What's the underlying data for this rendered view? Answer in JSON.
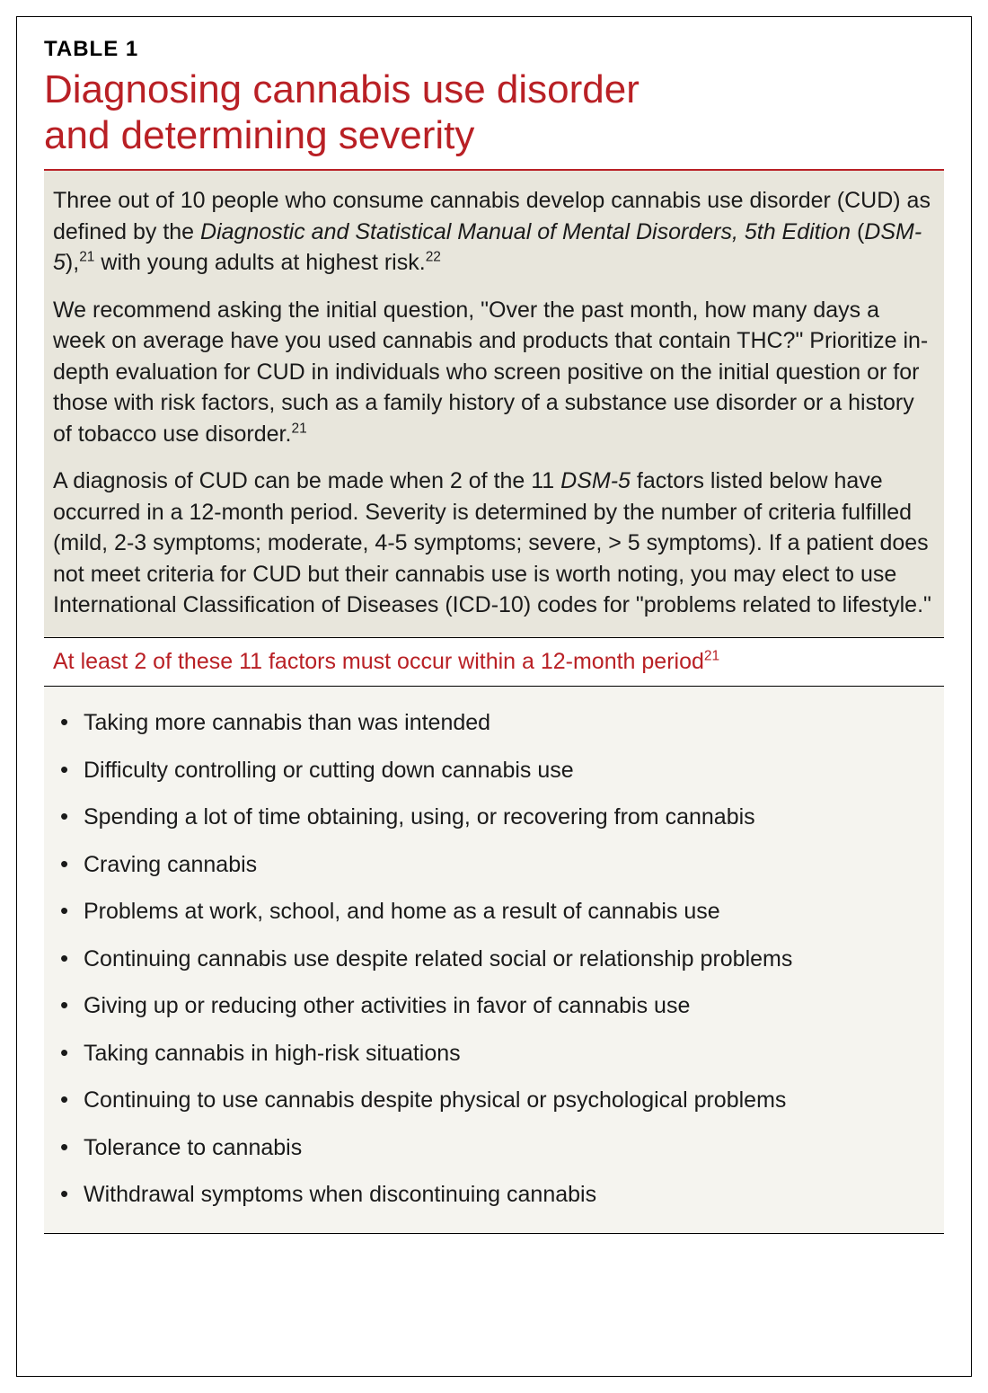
{
  "table_label": "TABLE 1",
  "title_line1": "Diagnosing cannabis use disorder",
  "title_line2": "and determining severity",
  "colors": {
    "accent": "#b92025",
    "intro_bg": "#e8e6dc",
    "factors_bg": "#f5f4ef",
    "border": "#000000",
    "text": "#1a1a1a"
  },
  "intro": {
    "p1_a": "Three out of 10 people who consume cannabis develop cannabis use disorder (CUD) as defined by the ",
    "p1_em1": "Diagnostic and Statistical Manual of Mental Disorders, 5th Edition",
    "p1_b": " (",
    "p1_em2": "DSM-5",
    "p1_c": "),",
    "p1_sup1": "21",
    "p1_d": " with young adults at highest risk.",
    "p1_sup2": "22",
    "p2_a": "We recommend asking the initial question, \"Over the past month, how many days a week on average have you used cannabis and products that contain THC?\" Prioritize in-depth evaluation for CUD in individuals who screen positive on the initial question or for those with risk factors, such as a family history of a substance use disorder or a history of tobacco use disorder.",
    "p2_sup": "21",
    "p3_a": "A diagnosis of CUD can be made when 2 of the 11 ",
    "p3_em": "DSM-5",
    "p3_b": " factors listed below have occurred in a 12-month period. Severity is determined by the number of criteria fulfilled (mild, 2-3 symptoms; moderate, 4-5 symptoms; severe, > 5 symptoms). If a patient does not meet criteria for CUD but their cannabis use is worth noting, you may elect to use International Classification of Diseases (ICD-10) codes for \"problems related to lifestyle.\""
  },
  "subheading_text": "At least 2 of these 11 factors must occur within a 12-month period",
  "subheading_sup": "21",
  "factors": [
    "Taking more cannabis than was intended",
    "Difficulty controlling or cutting down cannabis use",
    "Spending a lot of time obtaining, using, or recovering from cannabis",
    "Craving cannabis",
    "Problems at work, school, and home as a result of cannabis use",
    "Continuing cannabis use despite related social or relationship problems",
    "Giving up or reducing other activities in favor of cannabis use",
    "Taking cannabis in high-risk situations",
    "Continuing to use cannabis despite physical or psychological problems",
    "Tolerance to cannabis",
    "Withdrawal symptoms when discontinuing cannabis"
  ]
}
